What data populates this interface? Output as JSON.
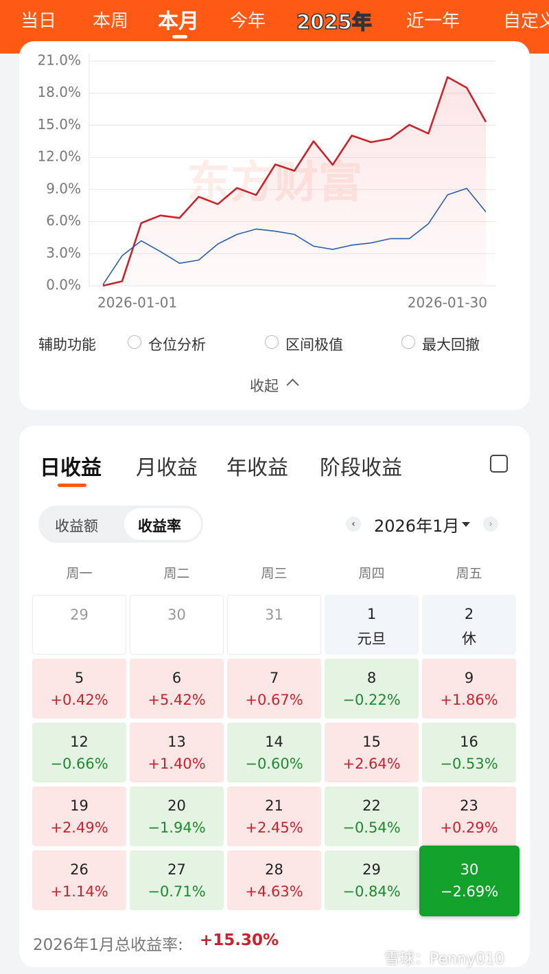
{
  "tabs": [
    "当日",
    "本周",
    "本月",
    "今年",
    "2025年",
    "近一年",
    "自定义"
  ],
  "chart_data": {
    "type": "line",
    "categories": [
      "2026-01-01",
      null,
      null,
      null,
      null,
      null,
      null,
      null,
      null,
      null,
      null,
      null,
      null,
      null,
      null,
      null,
      null,
      null,
      null,
      null,
      "2026-01-30"
    ],
    "series": [
      {
        "color": "#c8232c",
        "values": [
          0,
          0.42,
          5.86,
          6.57,
          6.34,
          8.32,
          7.63,
          9.14,
          8.48,
          11.34,
          10.75,
          13.51,
          11.31,
          14.04,
          13.42,
          13.75,
          15.05,
          14.23,
          19.51,
          18.51,
          15.32
        ]
      },
      {
        "color": "#2a5ea8",
        "values": [
          0.1,
          2.8,
          4.2,
          3.2,
          2.1,
          2.4,
          3.9,
          4.8,
          5.3,
          5.1,
          4.8,
          3.7,
          3.4,
          3.8,
          4.0,
          4.4,
          4.4,
          5.8,
          8.5,
          9.1,
          6.9
        ]
      }
    ],
    "ylim": [
      0,
      21
    ],
    "yticks": [
      {
        "value": 0,
        "label": "0.0%"
      },
      {
        "value": 3,
        "label": "3.0%"
      },
      {
        "value": 6,
        "label": "6.0%"
      },
      {
        "value": 9,
        "label": "9.0%"
      },
      {
        "value": 12,
        "label": "12.0%"
      },
      {
        "value": 15,
        "label": "15.0%"
      },
      {
        "value": 18,
        "label": "18.0%"
      },
      {
        "value": 21,
        "label": "21.0%"
      }
    ],
    "grid": true,
    "watermark": "东方财富"
  },
  "assist": {
    "label": "辅助功能",
    "options": [
      "仓位分析",
      "区间极值",
      "最大回撤"
    ]
  },
  "collapse": "收起",
  "returns": {
    "tabs": [
      "日收益",
      "月收益",
      "年收益",
      "阶段收益"
    ],
    "toggle": [
      "收益额",
      "收益率"
    ],
    "month": "2026年1月",
    "weekdays": [
      "周一",
      "周二",
      "周三",
      "周四",
      "周五"
    ],
    "calendar": [
      [
        {
          "day": "29"
        },
        {
          "day": "30"
        },
        {
          "day": "31"
        },
        {
          "day": "1",
          "note": "元旦"
        },
        {
          "day": "2",
          "note": "休"
        }
      ],
      [
        {
          "day": "5",
          "change": "+0.42%"
        },
        {
          "day": "6",
          "change": "+5.42%"
        },
        {
          "day": "7",
          "change": "+0.67%"
        },
        {
          "day": "8",
          "change": "−0.22%"
        },
        {
          "day": "9",
          "change": "+1.86%"
        }
      ],
      [
        {
          "day": "12",
          "change": "−0.66%"
        },
        {
          "day": "13",
          "change": "+1.40%"
        },
        {
          "day": "14",
          "change": "−0.60%"
        },
        {
          "day": "15",
          "change": "+2.64%"
        },
        {
          "day": "16",
          "change": "−0.53%"
        }
      ],
      [
        {
          "day": "19",
          "change": "+2.49%"
        },
        {
          "day": "20",
          "change": "−1.94%"
        },
        {
          "day": "21",
          "change": "+2.45%"
        },
        {
          "day": "22",
          "change": "−0.54%"
        },
        {
          "day": "23",
          "change": "+0.29%"
        }
      ],
      [
        {
          "day": "26",
          "change": "+1.14%"
        },
        {
          "day": "27",
          "change": "−0.71%"
        },
        {
          "day": "28",
          "change": "+4.63%"
        },
        {
          "day": "29",
          "change": "−0.84%"
        },
        {
          "day": "30",
          "change": "−2.69%"
        }
      ]
    ],
    "total_label": "2026年1月总收益率:",
    "total_value": "+15.30%"
  },
  "footer_watermark": "雪球：Penny010"
}
